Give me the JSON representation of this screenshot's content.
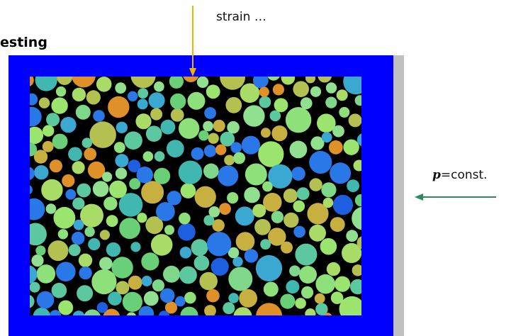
{
  "header": {
    "title": "esting"
  },
  "top_annotation": "strain …",
  "side_annotation": {
    "symbol": "p",
    "text": "=const."
  }
}
